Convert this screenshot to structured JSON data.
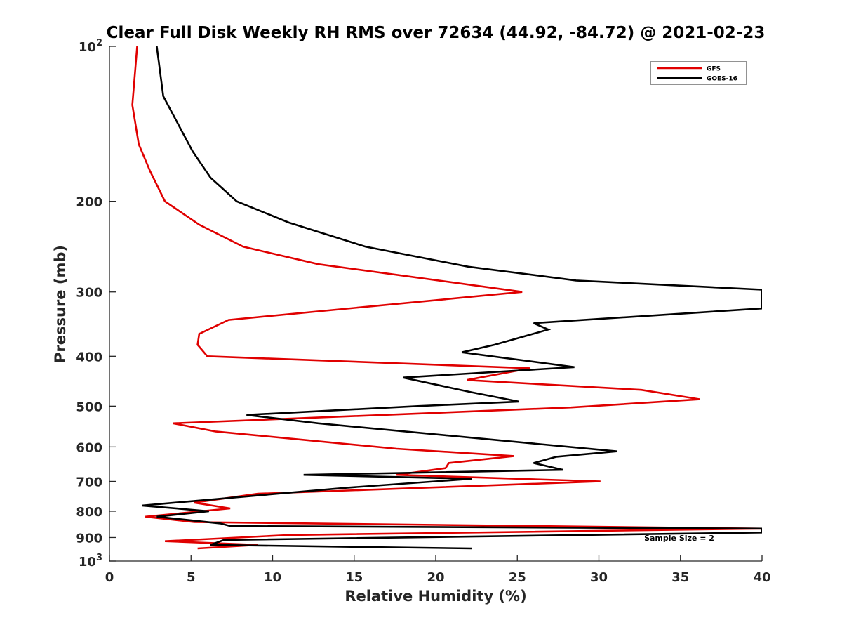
{
  "chart_data": {
    "type": "line",
    "title": "Clear Full Disk Weekly RH RMS over 72634 (44.92, -84.72) @ 2021-02-23",
    "xlabel": "Relative Humidity (%)",
    "ylabel": "Pressure (mb)",
    "xlim": [
      0,
      40
    ],
    "ylim": [
      100,
      1000
    ],
    "yscale": "log",
    "yreverse": true,
    "grid": false,
    "legend_position": "top-right",
    "x_ticks": [
      "0",
      "5",
      "10",
      "15",
      "20",
      "25",
      "30",
      "35",
      "40"
    ],
    "y_ticks": [
      {
        "value": 100,
        "base": "10",
        "exp": "2"
      },
      {
        "value": 200,
        "label": "200"
      },
      {
        "value": 300,
        "label": "300"
      },
      {
        "value": 400,
        "label": "400"
      },
      {
        "value": 500,
        "label": "500"
      },
      {
        "value": 600,
        "label": "600"
      },
      {
        "value": 700,
        "label": "700"
      },
      {
        "value": 800,
        "label": "800"
      },
      {
        "value": 900,
        "label": "900"
      },
      {
        "value": 1000,
        "base": "10",
        "exp": "3"
      }
    ],
    "annotation": "Sample Size = 2",
    "series": [
      {
        "name": "GFS",
        "color": "#e00000",
        "rh": [
          1.7,
          1.4,
          1.8,
          2.5,
          3.4,
          5.5,
          8.2,
          12.8,
          25.3,
          7.3,
          5.5,
          5.4,
          6.0,
          25.8,
          21.9,
          32.6,
          36.2,
          28.3,
          3.9,
          6.5,
          17.6,
          24.8,
          20.8,
          20.6,
          17.6,
          30.1,
          9.1,
          5.2,
          7.4,
          2.2,
          5.2,
          40.0,
          11.0,
          3.4,
          9.1,
          5.4
        ],
        "pressure": [
          100,
          130,
          155,
          175,
          200,
          222,
          245,
          265,
          300,
          340,
          362,
          380,
          400,
          422,
          445,
          465,
          485,
          503,
          540,
          560,
          605,
          625,
          645,
          660,
          680,
          700,
          740,
          770,
          790,
          820,
          840,
          865,
          890,
          915,
          930,
          945
        ]
      },
      {
        "name": "GOES-16",
        "color": "#000000",
        "rh": [
          2.9,
          3.3,
          5.1,
          6.2,
          7.8,
          11.0,
          15.7,
          22.0,
          28.6,
          40.0,
          40.0,
          26.0,
          26.9,
          23.6,
          21.6,
          28.5,
          18.0,
          22.2,
          25.1,
          18.9,
          8.4,
          12.8,
          20.7,
          31.1,
          27.4,
          26.0,
          27.8,
          11.9,
          22.2,
          14.6,
          2.0,
          6.1,
          2.9,
          6.8,
          7.4,
          40.0,
          40.0,
          7.0,
          6.2,
          22.2
        ],
        "pressure": [
          100,
          125,
          160,
          180,
          200,
          220,
          245,
          268,
          285,
          297,
          323,
          345,
          355,
          380,
          393,
          420,
          440,
          470,
          490,
          500,
          520,
          540,
          570,
          612,
          627,
          645,
          665,
          680,
          692,
          720,
          780,
          800,
          820,
          845,
          855,
          865,
          880,
          910,
          930,
          945
        ]
      }
    ]
  }
}
